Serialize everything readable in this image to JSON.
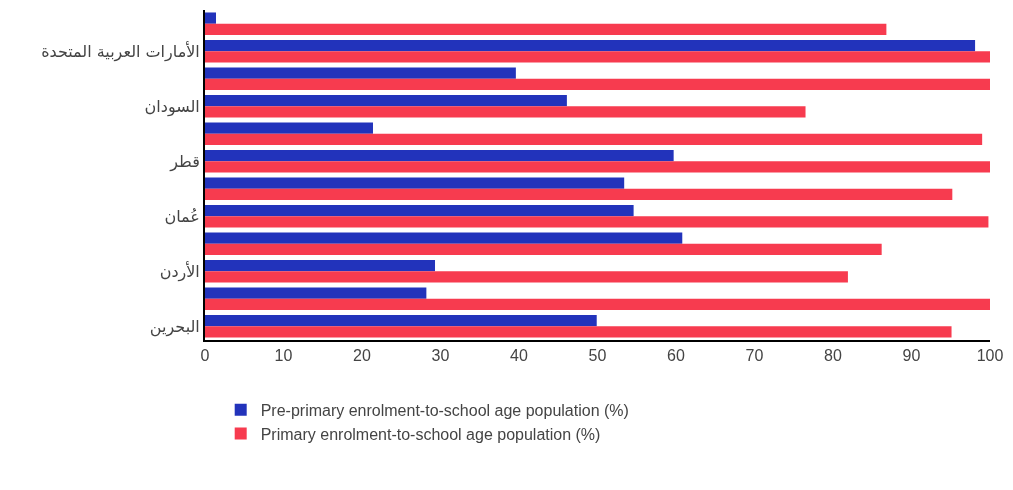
{
  "chart_data": {
    "type": "bar",
    "orientation": "horizontal",
    "categories": [
      null,
      "الأمارات العربية المتحدة",
      null,
      "السودان",
      null,
      "قطر",
      null,
      "عُمان",
      null,
      "الأردن",
      null,
      "البحرين"
    ],
    "series": [
      {
        "name": "Pre-primary enrolment-to-school age population (%)",
        "color": "#2233bb",
        "values": [
          1.4,
          98.1,
          39.6,
          46.1,
          21.4,
          59.7,
          53.4,
          54.6,
          60.8,
          29.3,
          28.2,
          49.9
        ]
      },
      {
        "name": "Primary enrolment-to-school age population (%)",
        "color": "#f73b4f",
        "values": [
          86.8,
          100,
          100,
          76.5,
          99,
          100,
          95.2,
          99.8,
          86.2,
          81.9,
          100,
          95.1
        ]
      }
    ],
    "xlim": [
      0,
      100
    ],
    "xticks": [
      0,
      10,
      20,
      30,
      40,
      50,
      60,
      70,
      80,
      90,
      100
    ],
    "grid": false,
    "legend": "bottom"
  }
}
